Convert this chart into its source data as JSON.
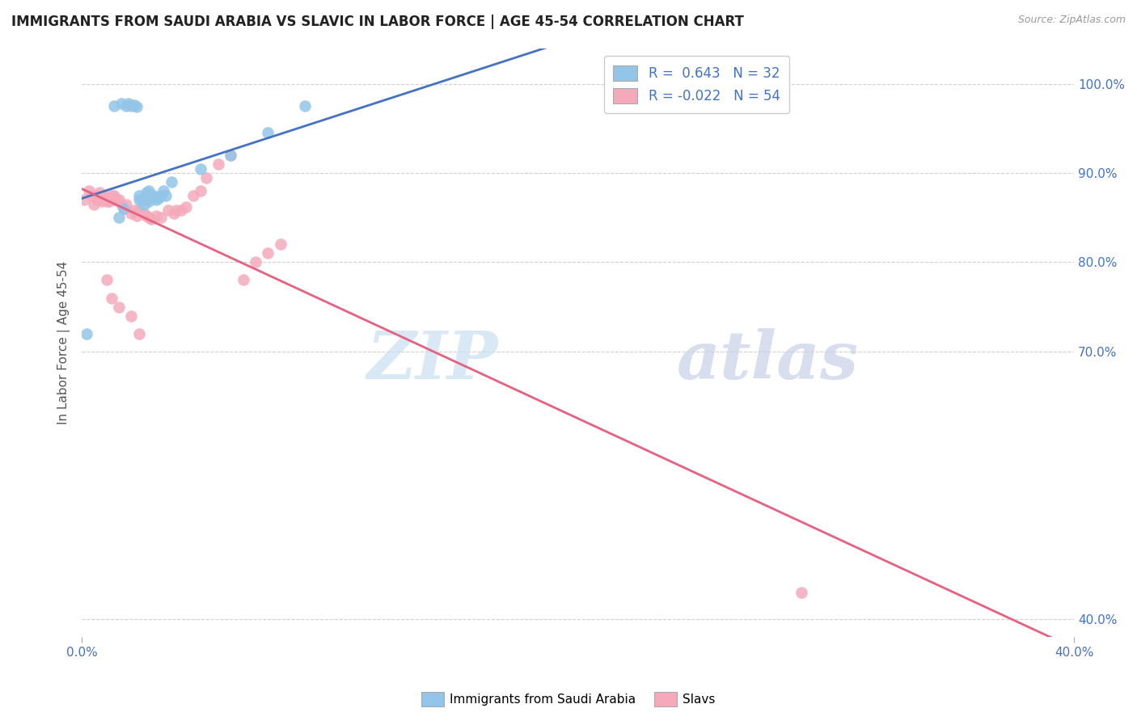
{
  "title": "IMMIGRANTS FROM SAUDI ARABIA VS SLAVIC IN LABOR FORCE | AGE 45-54 CORRELATION CHART",
  "source_text": "Source: ZipAtlas.com",
  "ylabel": "In Labor Force | Age 45-54",
  "xlim": [
    0.0,
    0.4
  ],
  "ylim": [
    0.38,
    1.04
  ],
  "xtick_positions": [
    0.0,
    0.4
  ],
  "xtick_labels": [
    "0.0%",
    "40.0%"
  ],
  "yticks_right": [
    1.0,
    0.9,
    0.8,
    0.7,
    0.4
  ],
  "ytick_right_labels": [
    "100.0%",
    "90.0%",
    "80.0%",
    "70.0%",
    "40.0%"
  ],
  "R_saudi": 0.643,
  "N_saudi": 32,
  "R_slavic": -0.022,
  "N_slavic": 54,
  "saudi_color": "#92C5E8",
  "slavic_color": "#F4AABB",
  "trend_saudi_color": "#4472C4",
  "trend_slavic_color": "#E86080",
  "legend_saudi": "Immigrants from Saudi Arabia",
  "legend_slavic": "Slavs",
  "background_color": "#ffffff",
  "grid_color": "#d0d0d0",
  "saudi_x": [
    0.002,
    0.013,
    0.016,
    0.018,
    0.019,
    0.02,
    0.021,
    0.022,
    0.023,
    0.024,
    0.025,
    0.026,
    0.027,
    0.028,
    0.029,
    0.03,
    0.031,
    0.032,
    0.033,
    0.034,
    0.015,
    0.017,
    0.023,
    0.025,
    0.026,
    0.027,
    0.028,
    0.036,
    0.048,
    0.06,
    0.075,
    0.09
  ],
  "saudi_y": [
    0.72,
    0.975,
    0.978,
    0.975,
    0.978,
    0.975,
    0.976,
    0.974,
    0.875,
    0.87,
    0.865,
    0.87,
    0.868,
    0.875,
    0.875,
    0.87,
    0.872,
    0.875,
    0.88,
    0.875,
    0.85,
    0.86,
    0.87,
    0.87,
    0.878,
    0.88,
    0.875,
    0.89,
    0.905,
    0.92,
    0.945,
    0.975
  ],
  "slavic_x": [
    0.001,
    0.003,
    0.004,
    0.005,
    0.006,
    0.006,
    0.007,
    0.007,
    0.008,
    0.008,
    0.009,
    0.009,
    0.01,
    0.01,
    0.011,
    0.011,
    0.012,
    0.013,
    0.013,
    0.014,
    0.015,
    0.016,
    0.017,
    0.018,
    0.02,
    0.021,
    0.022,
    0.023,
    0.025,
    0.026,
    0.027,
    0.028,
    0.03,
    0.032,
    0.035,
    0.037,
    0.038,
    0.04,
    0.042,
    0.045,
    0.048,
    0.05,
    0.055,
    0.06,
    0.065,
    0.07,
    0.075,
    0.08,
    0.01,
    0.012,
    0.015,
    0.02,
    0.29,
    0.023
  ],
  "slavic_y": [
    0.87,
    0.88,
    0.875,
    0.865,
    0.87,
    0.875,
    0.873,
    0.878,
    0.872,
    0.868,
    0.87,
    0.875,
    0.868,
    0.872,
    0.868,
    0.87,
    0.875,
    0.87,
    0.875,
    0.87,
    0.87,
    0.865,
    0.86,
    0.865,
    0.855,
    0.858,
    0.852,
    0.858,
    0.855,
    0.852,
    0.85,
    0.848,
    0.852,
    0.85,
    0.858,
    0.855,
    0.858,
    0.858,
    0.862,
    0.875,
    0.88,
    0.895,
    0.91,
    0.92,
    0.78,
    0.8,
    0.81,
    0.82,
    0.78,
    0.76,
    0.75,
    0.74,
    0.43,
    0.72
  ],
  "watermark_zip_color": "#c8dff2",
  "watermark_atlas_color": "#c8d0e8"
}
